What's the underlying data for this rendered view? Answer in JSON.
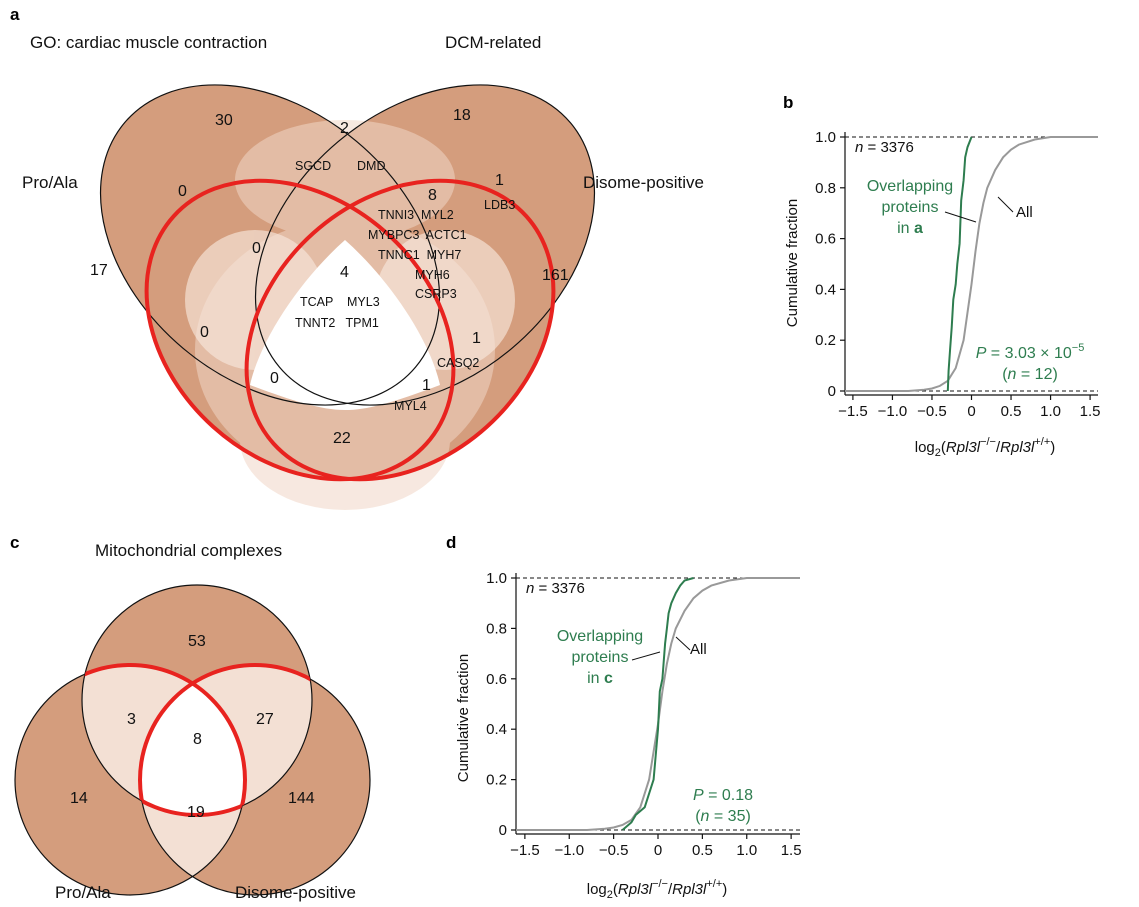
{
  "panels": {
    "a": "a",
    "b": "b",
    "c": "c",
    "d": "d"
  },
  "venn_a": {
    "sets": [
      "GO: cardiac muscle contraction",
      "DCM-related",
      "Pro/Ala",
      "Disome-positive"
    ],
    "counts": {
      "go_only": "30",
      "dcm_only": "18",
      "proala_only": "17",
      "disome_only": "161",
      "go_dcm": "2",
      "go_proala": "0",
      "dcm_disome": "1",
      "proala_disome": "22",
      "go_dcm_proala": "0",
      "go_dcm_disome": "8",
      "all_four": "4",
      "go_proala_disome": "0",
      "dcm_proala_disome": "1",
      "go_disome": "1",
      "dcm_proala": "0"
    },
    "genes": {
      "go_dcm": [
        "SGCD",
        "DMD"
      ],
      "dcm_disome": [
        "LDB3"
      ],
      "go_dcm_disome": [
        "TNNI3  MYL2",
        "MYBPC3  ACTC1",
        "TNNC1  MYH7",
        "MYH6",
        "CSRP3"
      ],
      "all_four": [
        "TCAP    MYL3",
        "TNNT2   TPM1"
      ],
      "go_disome": [
        "CASQ2"
      ],
      "dcm_proala_disome": [
        "MYL4"
      ]
    }
  },
  "venn_c": {
    "sets": [
      "Mitochondrial complexes",
      "Pro/Ala",
      "Disome-positive"
    ],
    "counts": {
      "mito_only": "53",
      "proala_only": "14",
      "disome_only": "144",
      "mito_proala": "3",
      "mito_disome": "27",
      "proala_disome": "19",
      "all_three": "8"
    }
  },
  "chart_data": [
    {
      "panel": "b",
      "type": "line",
      "xlabel": "log2(Rpl3l−/−/Rpl3l+/+)",
      "ylabel": "Cumulative fraction",
      "xlim": [
        -1.6,
        1.6
      ],
      "ylim": [
        0,
        1.0
      ],
      "xticks": [
        "−1.5",
        "−1.0",
        "−0.5",
        "0",
        "0.5",
        "1.0",
        "1.5"
      ],
      "yticks": [
        "0",
        "0.2",
        "0.4",
        "0.6",
        "0.8",
        "1.0"
      ],
      "annotations": {
        "n_total": "n = 3376",
        "series_label": [
          "Overlapping",
          "proteins",
          "in a"
        ],
        "all_label": "All",
        "p_value": "P = 3.03 × 10−5",
        "n_overlap": "(n = 12)"
      },
      "series": [
        {
          "name": "All",
          "color": "#999999",
          "x": [
            -1.6,
            -0.8,
            -0.6,
            -0.5,
            -0.4,
            -0.3,
            -0.2,
            -0.1,
            0.0,
            0.05,
            0.1,
            0.15,
            0.2,
            0.3,
            0.4,
            0.5,
            0.6,
            0.8,
            1.0,
            1.6
          ],
          "y": [
            0.0,
            0.0,
            0.005,
            0.01,
            0.02,
            0.04,
            0.09,
            0.2,
            0.42,
            0.55,
            0.66,
            0.74,
            0.8,
            0.87,
            0.92,
            0.95,
            0.97,
            0.99,
            1.0,
            1.0
          ]
        },
        {
          "name": "Overlapping proteins in a",
          "color": "#2e7d4f",
          "x": [
            -0.3,
            -0.29,
            -0.27,
            -0.25,
            -0.23,
            -0.2,
            -0.18,
            -0.15,
            -0.13,
            -0.1,
            -0.08,
            -0.05,
            0.0
          ],
          "y": [
            0.0,
            0.08,
            0.17,
            0.25,
            0.36,
            0.42,
            0.5,
            0.58,
            0.75,
            0.83,
            0.92,
            0.96,
            1.0
          ]
        }
      ]
    },
    {
      "panel": "d",
      "type": "line",
      "xlabel": "log2(Rpl3l−/−/Rpl3l+/+)",
      "ylabel": "Cumulative fraction",
      "xlim": [
        -1.6,
        1.6
      ],
      "ylim": [
        0,
        1.0
      ],
      "xticks": [
        "−1.5",
        "−1.0",
        "−0.5",
        "0",
        "0.5",
        "1.0",
        "1.5"
      ],
      "yticks": [
        "0",
        "0.2",
        "0.4",
        "0.6",
        "0.8",
        "1.0"
      ],
      "annotations": {
        "n_total": "n = 3376",
        "series_label": [
          "Overlapping",
          "proteins",
          "in c"
        ],
        "all_label": "All",
        "p_value": "P = 0.18",
        "n_overlap": "(n = 35)"
      },
      "series": [
        {
          "name": "All",
          "color": "#999999",
          "x": [
            -1.6,
            -0.8,
            -0.6,
            -0.5,
            -0.4,
            -0.3,
            -0.2,
            -0.1,
            0.0,
            0.05,
            0.1,
            0.15,
            0.2,
            0.3,
            0.4,
            0.5,
            0.6,
            0.8,
            1.0,
            1.6
          ],
          "y": [
            0.0,
            0.0,
            0.005,
            0.01,
            0.02,
            0.04,
            0.09,
            0.2,
            0.42,
            0.55,
            0.66,
            0.74,
            0.8,
            0.87,
            0.92,
            0.95,
            0.97,
            0.99,
            1.0,
            1.0
          ]
        },
        {
          "name": "Overlapping proteins in c",
          "color": "#2e7d4f",
          "x": [
            -0.4,
            -0.3,
            -0.25,
            -0.15,
            -0.05,
            0.0,
            0.02,
            0.05,
            0.08,
            0.1,
            0.12,
            0.15,
            0.2,
            0.25,
            0.3,
            0.4
          ],
          "y": [
            0.0,
            0.03,
            0.06,
            0.09,
            0.2,
            0.4,
            0.55,
            0.6,
            0.74,
            0.8,
            0.86,
            0.9,
            0.94,
            0.97,
            0.99,
            1.0
          ]
        }
      ]
    }
  ]
}
